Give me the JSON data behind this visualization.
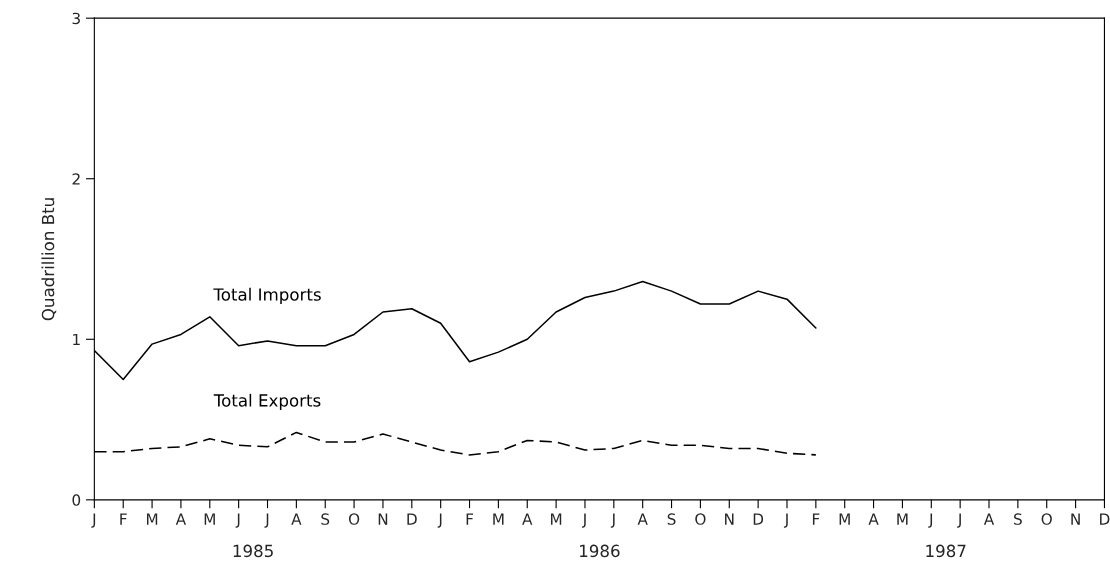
{
  "chart_data": {
    "type": "line",
    "ylabel": "Quadrillion Btu",
    "categories": [
      "J",
      "F",
      "M",
      "A",
      "M",
      "J",
      "J",
      "A",
      "S",
      "O",
      "N",
      "D",
      "J",
      "F",
      "M",
      "A",
      "M",
      "J",
      "J",
      "A",
      "S",
      "O",
      "N",
      "D",
      "J",
      "F",
      "M",
      "A",
      "M",
      "J",
      "J",
      "A",
      "S",
      "O",
      "N",
      "D"
    ],
    "series": [
      {
        "name": "Total Imports",
        "color": "#000000",
        "line_style": "solid",
        "values": [
          0.93,
          0.75,
          0.97,
          1.03,
          1.14,
          0.96,
          0.99,
          0.96,
          0.96,
          1.03,
          1.17,
          1.19,
          1.1,
          0.86,
          0.92,
          1.0,
          1.17,
          1.26,
          1.3,
          1.36,
          1.3,
          1.22,
          1.22,
          1.3,
          1.25,
          1.07,
          null,
          null,
          null,
          null,
          null,
          null,
          null,
          null,
          null,
          null
        ]
      },
      {
        "name": "Total Exports",
        "color": "#000000",
        "line_style": "dashed",
        "values": [
          0.3,
          0.3,
          0.32,
          0.33,
          0.38,
          0.34,
          0.33,
          0.42,
          0.36,
          0.36,
          0.41,
          0.36,
          0.31,
          0.28,
          0.3,
          0.37,
          0.36,
          0.31,
          0.32,
          0.37,
          0.34,
          0.34,
          0.32,
          0.32,
          0.29,
          0.28,
          null,
          null,
          null,
          null,
          null,
          null,
          null,
          null,
          null,
          null
        ]
      }
    ],
    "annotations": [
      "1985",
      "1986",
      "1987"
    ],
    "ylim": [
      0,
      3
    ],
    "yticks": [
      0,
      1,
      2,
      3
    ],
    "grid": false,
    "legend": false
  }
}
